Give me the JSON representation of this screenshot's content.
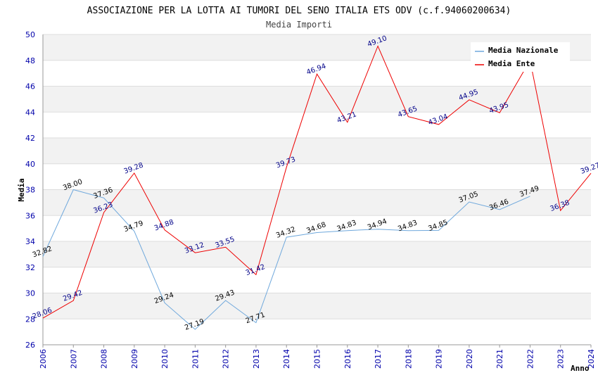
{
  "chart_data": {
    "type": "line",
    "title": "ASSOCIAZIONE PER LA LOTTA AI TUMORI DEL SENO ITALIA ETS ODV (c.f.94060200634)",
    "subtitle": "Media Importi",
    "xlabel": "Anno",
    "ylabel": "Media",
    "ylim": [
      26,
      50
    ],
    "yticks": [
      26,
      28,
      30,
      32,
      34,
      36,
      38,
      40,
      42,
      44,
      46,
      48,
      50
    ],
    "x": [
      "2006",
      "2007",
      "2008",
      "2009",
      "2010",
      "2011",
      "2012",
      "2013",
      "2014",
      "2015",
      "2016",
      "2017",
      "2018",
      "2019",
      "2020",
      "2021",
      "2022",
      "2023",
      "2024"
    ],
    "grid": true,
    "legend_position": "top-right",
    "series": [
      {
        "name": "Media Nazionale",
        "color": "#6fa8dc",
        "label_color": "#000000",
        "values": [
          32.82,
          38.0,
          37.36,
          34.79,
          29.24,
          27.19,
          29.43,
          27.71,
          34.32,
          34.68,
          34.83,
          34.94,
          34.83,
          34.85,
          37.05,
          36.46,
          37.49,
          null,
          null
        ],
        "labels": [
          "32.82",
          "38.00",
          "37.36",
          "34.79",
          "29.24",
          "27.19",
          "29.43",
          "27.71",
          "34.32",
          "34.68",
          "34.83",
          "34.94",
          "34.83",
          "34.85",
          "37.05",
          "36.46",
          "37.49",
          "",
          ""
        ]
      },
      {
        "name": "Media Ente",
        "color": "#ee0000",
        "label_color": "#000088",
        "values": [
          28.06,
          29.42,
          36.23,
          39.28,
          34.88,
          33.12,
          33.55,
          31.42,
          39.73,
          46.94,
          43.21,
          49.1,
          43.65,
          43.04,
          44.95,
          43.95,
          48.0,
          36.38,
          39.27
        ],
        "labels": [
          "28.06",
          "29.42",
          "36.23",
          "39.28",
          "34.88",
          "33.12",
          "33.55",
          "31.42",
          "39.73",
          "46.94",
          "43.21",
          "49.10",
          "43.65",
          "43.04",
          "44.95",
          "43.95",
          "",
          "36.38",
          "39.27"
        ]
      }
    ]
  }
}
